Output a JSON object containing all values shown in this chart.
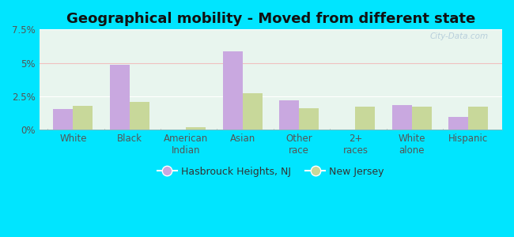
{
  "title": "Geographical mobility - Moved from different state",
  "categories": [
    "White",
    "Black",
    "American\nIndian",
    "Asian",
    "Other\nrace",
    "2+\nraces",
    "White\nalone",
    "Hispanic"
  ],
  "hasbrouck_values": [
    1.55,
    4.85,
    0.0,
    5.85,
    2.2,
    0.0,
    1.85,
    0.95
  ],
  "nj_values": [
    1.75,
    2.1,
    0.2,
    2.7,
    1.6,
    1.7,
    1.7,
    1.7
  ],
  "hasbrouck_color": "#c9a8e0",
  "nj_color": "#c8d89a",
  "ylim": [
    0,
    7.5
  ],
  "yticks": [
    0,
    2.5,
    5.0,
    7.5
  ],
  "ytick_labels": [
    "0%",
    "2.5%",
    "5%",
    "7.5%"
  ],
  "bar_width": 0.35,
  "outer_background": "#00e5ff",
  "legend_label1": "Hasbrouck Heights, NJ",
  "legend_label2": "New Jersey",
  "title_fontsize": 13,
  "axis_fontsize": 8.5,
  "watermark": "City-Data.com"
}
